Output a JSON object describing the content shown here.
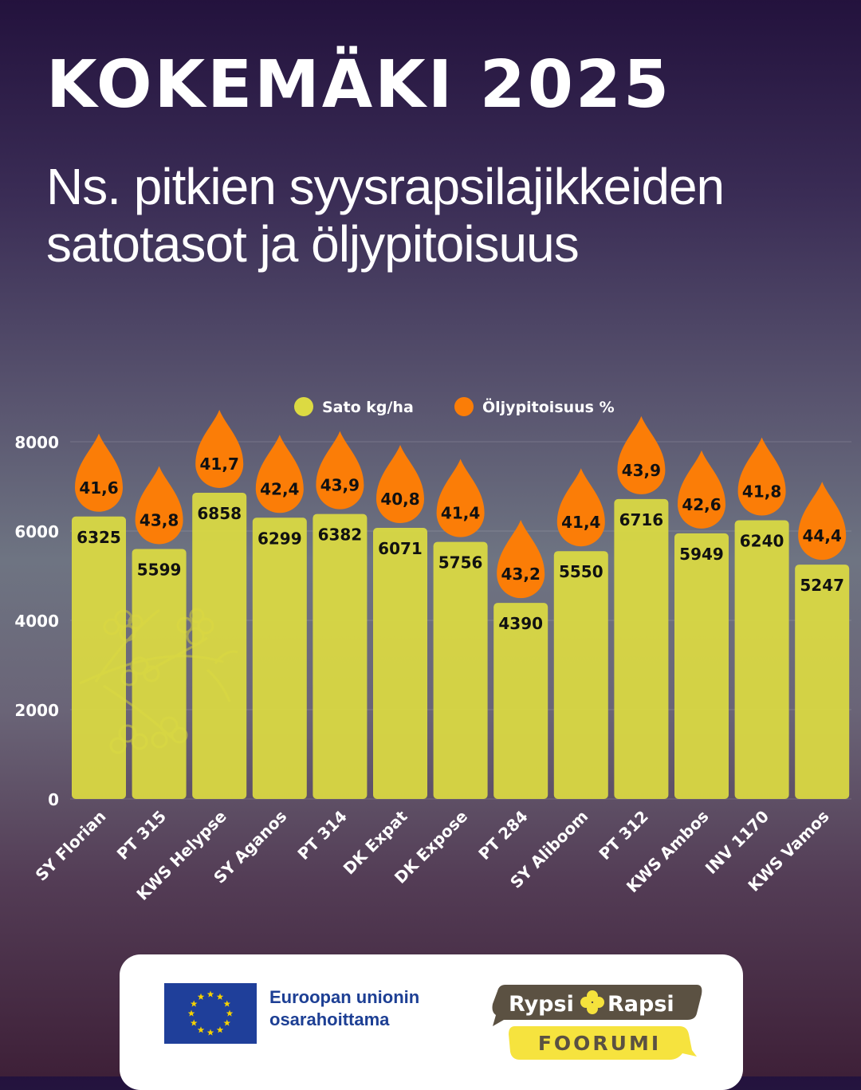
{
  "title": "KOKEMÄKI 2025",
  "subtitle": "Ns. pitkien syysrapsilajikkeiden satotasot ja öljypitoisuus",
  "chart_data": {
    "type": "bar",
    "categories": [
      "SY Florian",
      "PT 315",
      "KWS Helypse",
      "SY Aganos",
      "PT 314",
      "DK Expat",
      "DK Expose",
      "PT 284",
      "SY Aliboom",
      "PT 312",
      "KWS Ambos",
      "INV 1170",
      "KWS Vamos"
    ],
    "series": [
      {
        "name": "Sato kg/ha",
        "color": "#dcda42",
        "values": [
          6325,
          5599,
          6858,
          6299,
          6382,
          6071,
          5756,
          4390,
          5550,
          6716,
          5949,
          6240,
          5247
        ]
      },
      {
        "name": "Öljypitoisuus %",
        "color": "#fb7d07",
        "values": [
          41.6,
          43.8,
          41.7,
          42.4,
          43.9,
          40.8,
          41.4,
          43.2,
          41.4,
          43.9,
          42.6,
          41.8,
          44.4
        ]
      }
    ],
    "series_labels": [
      "41,6",
      "43,8",
      "41,7",
      "42,4",
      "43,9",
      "40,8",
      "41,4",
      "43,2",
      "41,4",
      "43,9",
      "42,6",
      "41,8",
      "44,4"
    ],
    "yticks": [
      "0",
      "2000",
      "4000",
      "6000",
      "8000"
    ],
    "ylim": [
      0,
      8000
    ],
    "grid": true,
    "legend_position": "top"
  },
  "footer": {
    "eu_line1": "Euroopan unionin",
    "eu_line2": "osarahoittama",
    "logo_top": "Rypsi",
    "logo_top_right": "Rapsi",
    "logo_bottom": "FOORUMI"
  }
}
